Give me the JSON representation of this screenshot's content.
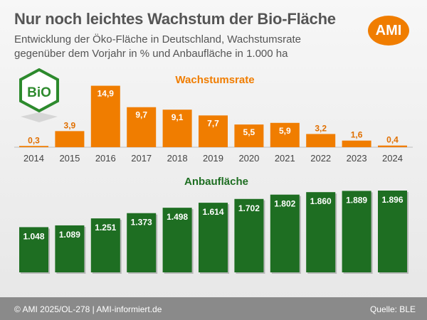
{
  "header": {
    "title": "Nur noch leichtes Wachstum der Bio-Fläche",
    "subtitle": "Entwicklung der Öko-Fläche in Deutschland, Wachstumsrate gegenüber dem Vorjahr in % und Anbaufläche in 1.000 ha",
    "logo_text": "AMI"
  },
  "bio_logo_text": "BiO",
  "footer": {
    "copyright": "© AMI 2025/OL-278 | AMI-informiert.de",
    "source": "Quelle: BLE"
  },
  "colors": {
    "growth": "#f07d00",
    "area": "#1e6e22",
    "footer": "#8a8a8a"
  },
  "chart_data": [
    {
      "type": "bar",
      "title": "Wachstumsrate",
      "categories": [
        "2014",
        "2015",
        "2016",
        "2017",
        "2018",
        "2019",
        "2020",
        "2021",
        "2022",
        "2023",
        "2024"
      ],
      "values": [
        0.3,
        3.9,
        14.9,
        9.7,
        9.1,
        7.7,
        5.5,
        5.9,
        3.2,
        1.6,
        0.4
      ],
      "value_labels": [
        "0,3",
        "3,9",
        "14,9",
        "9,7",
        "9,1",
        "7,7",
        "5,5",
        "5,9",
        "3,2",
        "1,6",
        "0,4"
      ],
      "ylim": [
        0,
        15
      ]
    },
    {
      "type": "bar",
      "title": "Anbaufläche",
      "categories": [
        "2014",
        "2015",
        "2016",
        "2017",
        "2018",
        "2019",
        "2020",
        "2021",
        "2022",
        "2023",
        "2024"
      ],
      "values": [
        1048,
        1089,
        1251,
        1373,
        1498,
        1614,
        1702,
        1802,
        1860,
        1889,
        1896
      ],
      "value_labels": [
        "1.048",
        "1.089",
        "1.251",
        "1.373",
        "1.498",
        "1.614",
        "1.702",
        "1.802",
        "1.860",
        "1.889",
        "1.896"
      ]
    }
  ]
}
